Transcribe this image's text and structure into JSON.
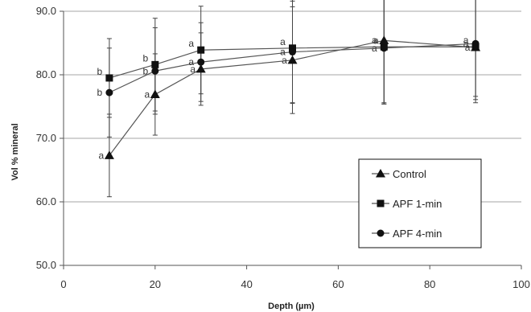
{
  "chart_data": {
    "type": "line",
    "xlabel": "Depth (µm)",
    "ylabel": "Vol % mineral",
    "xlim": [
      0,
      100
    ],
    "ylim": [
      50,
      90
    ],
    "x_ticks": [
      0,
      20,
      40,
      60,
      80,
      100
    ],
    "y_ticks": [
      50.0,
      60.0,
      70.0,
      80.0,
      90.0
    ],
    "x_tick_labels": [
      "0",
      "20",
      "40",
      "60",
      "80",
      "100"
    ],
    "y_tick_labels": [
      "50.0",
      "60.0",
      "70.0",
      "80.0",
      "90.0"
    ],
    "grid": "horizontal",
    "legend_position": "bottom-right",
    "x": [
      10,
      20,
      30,
      50,
      70,
      90
    ],
    "series": [
      {
        "name": "Control",
        "marker": "triangle",
        "values": [
          67.3,
          76.9,
          80.9,
          82.3,
          85.4,
          84.3
        ],
        "error": [
          6.5,
          6.4,
          5.7,
          8.4,
          10.0,
          8.2
        ],
        "labels": [
          "a",
          "a",
          "a",
          "a",
          "a",
          "a"
        ]
      },
      {
        "name": "APF 1-min",
        "marker": "square",
        "values": [
          79.5,
          81.6,
          83.9,
          84.2,
          84.4,
          84.4
        ],
        "error": [
          6.2,
          7.3,
          6.9,
          8.7,
          8.8,
          8.8
        ],
        "labels": [
          "b",
          "b",
          "a",
          "a",
          "a",
          "a"
        ]
      },
      {
        "name": "APF 4-min",
        "marker": "circle",
        "values": [
          77.2,
          80.6,
          82.0,
          83.6,
          84.2,
          84.9
        ],
        "error": [
          7.0,
          6.8,
          6.2,
          8.0,
          8.8,
          8.3
        ],
        "labels": [
          "b",
          "b",
          "a",
          "a",
          "a",
          "a"
        ]
      }
    ]
  }
}
